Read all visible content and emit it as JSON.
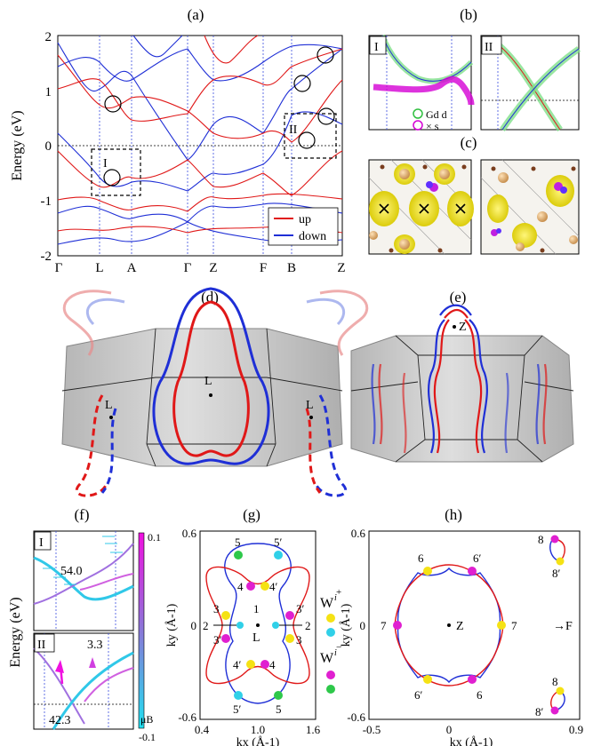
{
  "panels": {
    "a": "(a)",
    "b": "(b)",
    "c": "(c)",
    "d": "(d)",
    "e": "(e)",
    "f": "(f)",
    "g": "(g)",
    "h": "(h)"
  },
  "panel_a": {
    "ylabel": "Energy (eV)",
    "yticks": [
      "2",
      "1",
      "0",
      "-1",
      "-2"
    ],
    "kpoints": [
      "Γ",
      "L",
      "A",
      "Γ",
      "Z",
      "F",
      "B",
      "Z"
    ],
    "box_labels": [
      "I",
      "II"
    ],
    "legend": {
      "up": "up",
      "down": "down"
    }
  },
  "panel_b": {
    "labels": [
      "I",
      "II"
    ],
    "legend": {
      "gd": "Gd d",
      "s": "× s"
    }
  },
  "panel_d": {
    "points": [
      "L",
      "L",
      "L"
    ]
  },
  "panel_e": {
    "points": [
      "Z"
    ]
  },
  "panel_f": {
    "ylabel": "Energy (eV)",
    "sub": [
      "I",
      "II"
    ],
    "values": [
      "54.0",
      "3.3",
      "42.3"
    ],
    "colorbar": {
      "max": "0.1",
      "min": "-0.1",
      "label": "μB"
    }
  },
  "panel_g": {
    "xlabel": "kx (Å-1)",
    "ylabel": "ky (Å-1)",
    "xticks": [
      "0.4",
      "1.0",
      "1.6"
    ],
    "yticks": [
      "0.6",
      "0",
      "-0.6"
    ],
    "center": "L",
    "wlabels": [
      "5",
      "5′",
      "4",
      "4′",
      "3",
      "3′",
      "1",
      "2",
      "2",
      "3′",
      "3",
      "4′",
      "4",
      "5′",
      "5"
    ],
    "legend": {
      "plus": "W",
      "minus": "W"
    }
  },
  "panel_h": {
    "xlabel": "kx (Å-1)",
    "ylabel": "ky (Å-1)",
    "xticks": [
      "-0.5",
      "0",
      "0.9"
    ],
    "yticks": [
      "0.6",
      "0",
      "-0.6"
    ],
    "center": "Z",
    "wlabels": [
      "6",
      "6′",
      "7",
      "7",
      "6′",
      "6",
      "8",
      "8′",
      "8",
      "8′"
    ],
    "arrow_label": "→F"
  },
  "colors": {
    "up": "#e01818",
    "down": "#1f2fd6",
    "gd": "#2fbf3f",
    "s": "#d400d4",
    "weyl_yellow": "#f5e214",
    "weyl_cyan": "#30d0e8",
    "weyl_magenta": "#e020d0",
    "weyl_green": "#2ec84a"
  }
}
